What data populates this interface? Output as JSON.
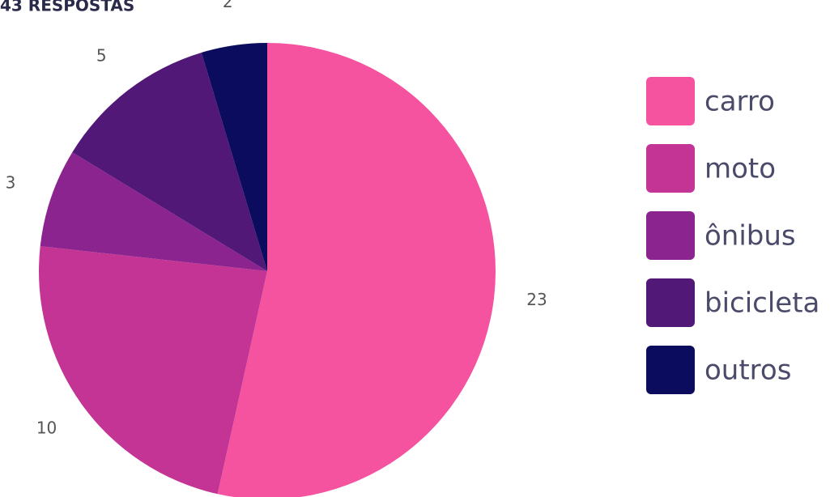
{
  "chart_data": {
    "type": "pie",
    "title": "43 RESPOSTAS",
    "categories": [
      "carro",
      "moto",
      "ônibus",
      "bicicleta",
      "outros"
    ],
    "values": [
      23,
      10,
      3,
      5,
      2
    ],
    "colors": [
      "#f552a0",
      "#c33494",
      "#8c2490",
      "#521878",
      "#0c0c5e"
    ],
    "legend": "right"
  }
}
